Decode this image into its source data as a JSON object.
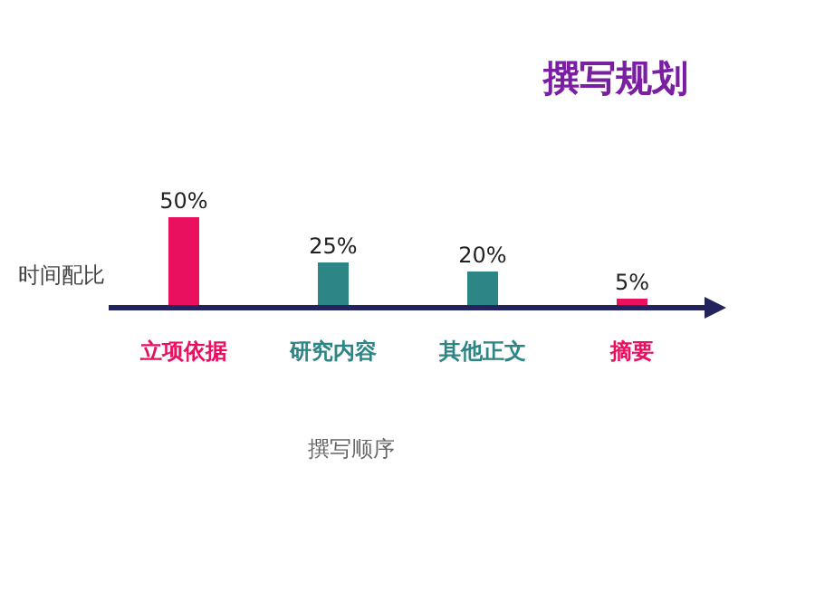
{
  "chart_data": {
    "type": "bar",
    "title": "撰写规划",
    "ylabel": "时间配比",
    "xlabel": "撰写顺序",
    "categories": [
      "立项依据",
      "研究内容",
      "其他正文",
      "摘要"
    ],
    "values": [
      50,
      25,
      20,
      5
    ],
    "value_labels": [
      "50%",
      "25%",
      "20%",
      "5%"
    ],
    "colors": [
      "#e8105f",
      "#2e8585",
      "#2e8585",
      "#e8105f"
    ],
    "legend": false,
    "grid": false
  }
}
